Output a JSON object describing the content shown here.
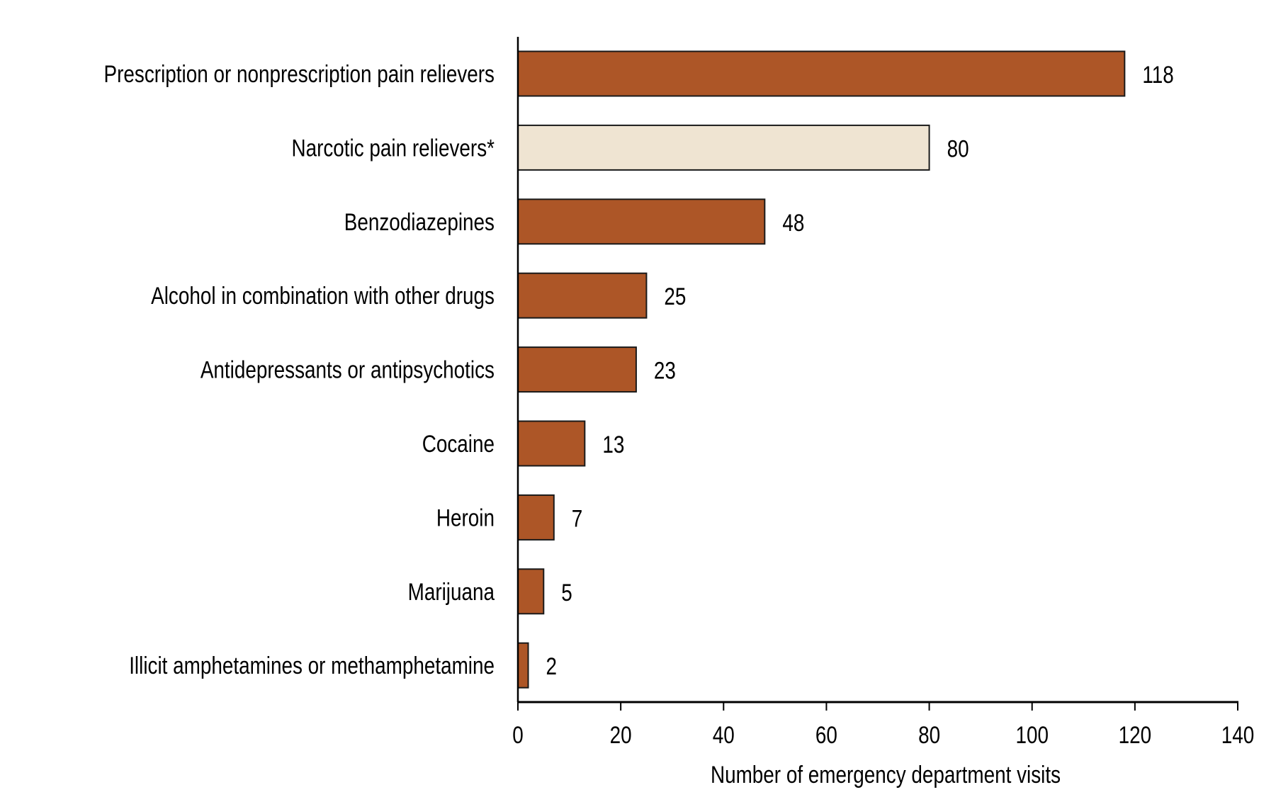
{
  "chart_data": {
    "type": "bar",
    "orientation": "horizontal",
    "categories": [
      "Prescription or nonprescription pain relievers",
      "Narcotic pain relievers*",
      "Benzodiazepines",
      "Alcohol in combination with other drugs",
      "Antidepressants or antipsychotics",
      "Cocaine",
      "Heroin",
      "Marijuana",
      "Illicit amphetamines or methamphetamine"
    ],
    "values": [
      118,
      80,
      48,
      25,
      23,
      13,
      7,
      5,
      2
    ],
    "data_labels": [
      "118",
      "80",
      "48",
      "25",
      "23",
      "13",
      "7",
      "5",
      "2"
    ],
    "highlight_index": 1,
    "colors": {
      "default": "#AD5627",
      "highlight": "#EFE4D2",
      "outline": "#1a1a1a"
    },
    "xlabel": "Number of emergency department visits",
    "ylabel": "",
    "xlim": [
      0,
      140
    ],
    "xticks": [
      0,
      20,
      40,
      60,
      80,
      100,
      120,
      140
    ],
    "xtick_labels": [
      "0",
      "20",
      "40",
      "60",
      "80",
      "100",
      "120",
      "140"
    ],
    "grid": false,
    "legend": "none"
  }
}
